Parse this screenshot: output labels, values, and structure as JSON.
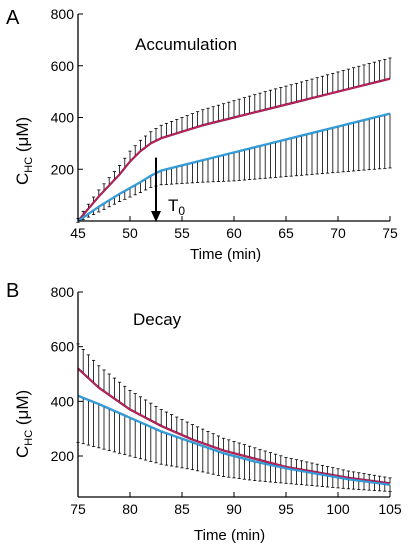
{
  "panels": [
    {
      "letter": "A",
      "annotation": "Accumulation",
      "marker_label": "T",
      "marker_sub": "0",
      "xlabel": "Time (min)",
      "ylabel_main": "C",
      "ylabel_sub": "HC",
      "ylabel_unit": " (μM)"
    },
    {
      "letter": "B",
      "annotation": "Decay",
      "xlabel": "Time (min)",
      "ylabel_main": "C",
      "ylabel_sub": "HC",
      "ylabel_unit": " (μM)"
    }
  ],
  "colors": {
    "black_data": "#000000",
    "blue_data": "#1f5fa8",
    "pink_fit": "#e0206a",
    "lightblue_fit": "#33a8e0",
    "light_pink_band": "#f2c4da",
    "light_blue_band": "#bde6f7"
  },
  "chart_data": [
    {
      "type": "line",
      "xlim": [
        45,
        75
      ],
      "ylim": [
        0,
        800
      ],
      "xticks": [
        45,
        50,
        55,
        60,
        65,
        70,
        75
      ],
      "yticks": [
        200,
        400,
        600,
        800
      ],
      "annotation_arrow_x": 52.5,
      "series": [
        {
          "x": [
            45,
            47,
            49,
            50,
            51,
            52,
            53,
            55,
            57,
            60,
            63,
            66,
            69,
            72,
            75
          ],
          "y": [
            0,
            95,
            180,
            230,
            270,
            300,
            320,
            345,
            370,
            400,
            430,
            460,
            490,
            520,
            550
          ],
          "err": [
            10,
            25,
            35,
            40,
            42,
            45,
            50,
            55,
            60,
            65,
            70,
            72,
            75,
            78,
            80
          ],
          "err_dir": "up"
        },
        {
          "x": [
            45,
            47,
            49,
            51,
            52,
            53,
            55,
            57,
            60,
            63,
            66,
            69,
            72,
            75
          ],
          "y": [
            0,
            55,
            105,
            150,
            175,
            195,
            215,
            235,
            265,
            295,
            325,
            355,
            385,
            415
          ],
          "err": [
            5,
            20,
            30,
            40,
            45,
            55,
            70,
            85,
            110,
            130,
            150,
            170,
            190,
            210
          ],
          "err_dir": "down"
        }
      ]
    },
    {
      "type": "line",
      "xlim": [
        75,
        105
      ],
      "ylim": [
        50,
        800
      ],
      "xticks": [
        75,
        80,
        85,
        90,
        95,
        100,
        105
      ],
      "yticks": [
        200,
        400,
        600,
        800
      ],
      "series": [
        {
          "x": [
            75,
            77,
            80,
            83,
            86,
            89,
            92,
            95,
            98,
            101,
            105
          ],
          "y": [
            520,
            450,
            370,
            310,
            260,
            220,
            190,
            160,
            140,
            120,
            100
          ],
          "err": [
            90,
            80,
            70,
            60,
            55,
            45,
            40,
            35,
            30,
            25,
            20
          ],
          "err_dir": "up"
        },
        {
          "x": [
            75,
            77,
            80,
            83,
            86,
            89,
            92,
            95,
            98,
            101,
            105
          ],
          "y": [
            420,
            390,
            340,
            290,
            250,
            210,
            180,
            155,
            135,
            115,
            95
          ],
          "err": [
            170,
            160,
            140,
            120,
            100,
            85,
            70,
            55,
            45,
            35,
            25
          ],
          "err_dir": "down"
        }
      ]
    }
  ]
}
